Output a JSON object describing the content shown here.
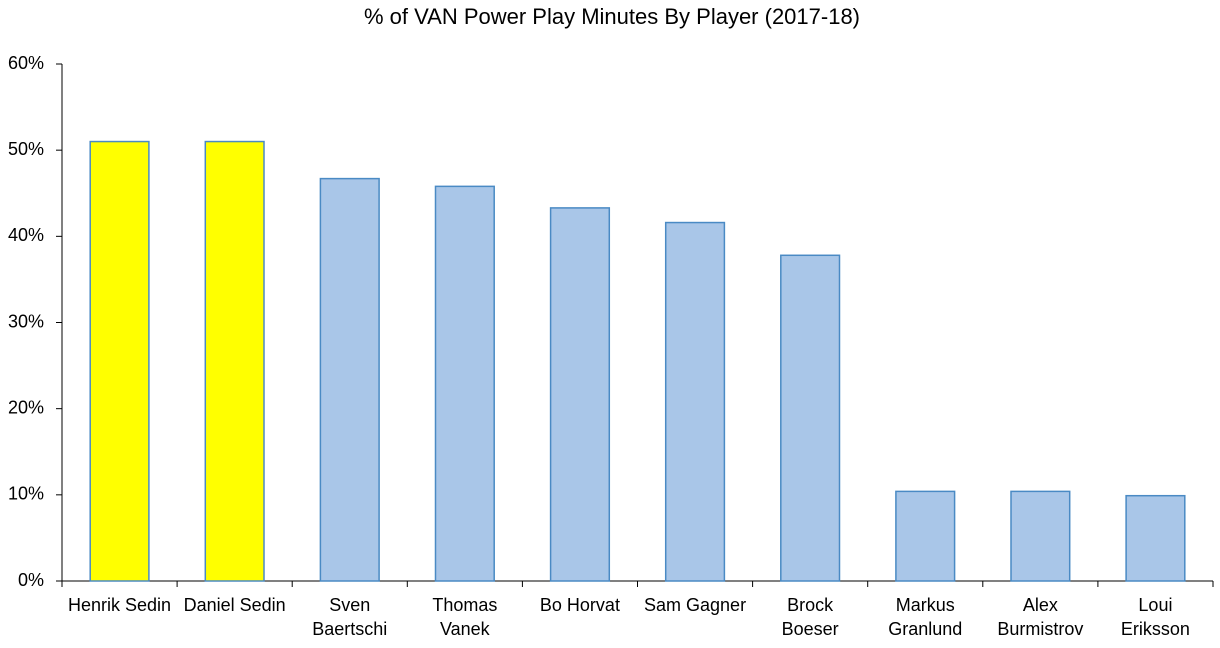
{
  "chart_data": {
    "type": "bar",
    "title": "% of VAN Power Play Minutes By Player (2017-18)",
    "categories": [
      "Henrik Sedin",
      "Daniel Sedin",
      "Sven Baertschi",
      "Thomas Vanek",
      "Bo Horvat",
      "Sam Gagner",
      "Brock Boeser",
      "Markus Granlund",
      "Alex Burmistrov",
      "Loui Eriksson"
    ],
    "values": [
      51,
      51,
      46.7,
      45.8,
      43.3,
      41.6,
      37.8,
      10.4,
      10.4,
      9.9
    ],
    "colors": [
      "#ffff00",
      "#ffff00",
      "#a9c6e8",
      "#a9c6e8",
      "#a9c6e8",
      "#a9c6e8",
      "#a9c6e8",
      "#a9c6e8",
      "#a9c6e8",
      "#a9c6e8"
    ],
    "ylim": [
      0,
      60
    ],
    "yticks": [
      {
        "value": 0,
        "label": "0%"
      },
      {
        "value": 10,
        "label": "10%"
      },
      {
        "value": 20,
        "label": "20%"
      },
      {
        "value": 30,
        "label": "30%"
      },
      {
        "value": 40,
        "label": "40%"
      },
      {
        "value": 50,
        "label": "50%"
      },
      {
        "value": 60,
        "label": "60%"
      }
    ],
    "grid": false
  }
}
